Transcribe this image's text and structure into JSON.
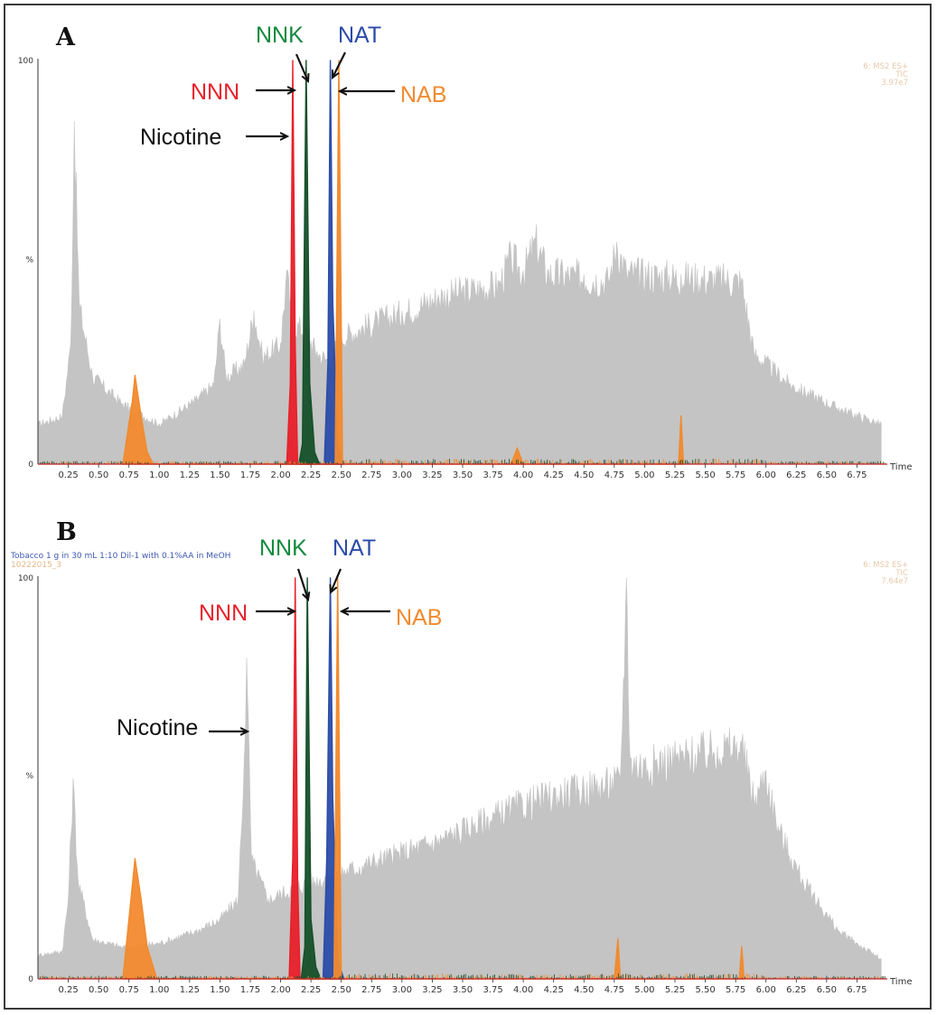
{
  "chart_data": [
    {
      "type": "line",
      "panel_label": "A",
      "xlabel": "Time",
      "ylabel_top": "100",
      "ylabel_mid": "%",
      "ylabel_zero": "0",
      "xlim": [
        0.0,
        7.0
      ],
      "ylim": [
        0,
        100
      ],
      "x_ticks": [
        "0.25",
        "0.50",
        "0.75",
        "1.00",
        "1.25",
        "1.50",
        "1.75",
        "2.00",
        "2.25",
        "2.50",
        "2.75",
        "3.00",
        "3.25",
        "3.50",
        "3.75",
        "4.00",
        "4.25",
        "4.50",
        "4.75",
        "5.00",
        "5.25",
        "5.50",
        "5.75",
        "6.00",
        "6.25",
        "6.50",
        "6.75"
      ],
      "header_right": [
        "6: MS2 ES+",
        "TIC",
        "3.97e7"
      ],
      "caption": [],
      "series": [
        {
          "name": "TIC",
          "color": "#c4c4c4",
          "points": [
            [
              0.0,
              10
            ],
            [
              0.2,
              12
            ],
            [
              0.27,
              30
            ],
            [
              0.3,
              85
            ],
            [
              0.34,
              40
            ],
            [
              0.45,
              22
            ],
            [
              0.7,
              15
            ],
            [
              1.0,
              10
            ],
            [
              1.3,
              16
            ],
            [
              1.45,
              20
            ],
            [
              1.5,
              36
            ],
            [
              1.55,
              22
            ],
            [
              1.7,
              25
            ],
            [
              1.78,
              38
            ],
            [
              1.85,
              27
            ],
            [
              2.0,
              30
            ],
            [
              2.05,
              48
            ],
            [
              2.1,
              35
            ],
            [
              2.2,
              34
            ],
            [
              2.3,
              28
            ],
            [
              2.4,
              26
            ],
            [
              2.5,
              32
            ],
            [
              2.8,
              36
            ],
            [
              3.0,
              38
            ],
            [
              3.3,
              42
            ],
            [
              3.6,
              44
            ],
            [
              3.8,
              45
            ],
            [
              3.9,
              52
            ],
            [
              4.0,
              48
            ],
            [
              4.1,
              56
            ],
            [
              4.2,
              48
            ],
            [
              4.5,
              47
            ],
            [
              4.7,
              46
            ],
            [
              4.77,
              55
            ],
            [
              4.85,
              48
            ],
            [
              5.3,
              47
            ],
            [
              5.8,
              46
            ],
            [
              5.9,
              28
            ],
            [
              6.2,
              20
            ],
            [
              6.6,
              14
            ],
            [
              6.95,
              10
            ]
          ]
        },
        {
          "name": "NNN",
          "color": "#e8202a",
          "points": [
            [
              2.0,
              0
            ],
            [
              2.05,
              0
            ],
            [
              2.08,
              20
            ],
            [
              2.1,
              100
            ],
            [
              2.12,
              30
            ],
            [
              2.14,
              0
            ],
            [
              2.5,
              0
            ]
          ]
        },
        {
          "name": "NNK",
          "color": "#15502a",
          "points": [
            [
              2.15,
              0
            ],
            [
              2.18,
              5
            ],
            [
              2.21,
              100
            ],
            [
              2.24,
              20
            ],
            [
              2.28,
              3
            ],
            [
              2.32,
              0
            ]
          ]
        },
        {
          "name": "NAT",
          "color": "#2b4ca8",
          "points": [
            [
              2.36,
              0
            ],
            [
              2.39,
              25
            ],
            [
              2.41,
              100
            ],
            [
              2.43,
              40
            ],
            [
              2.47,
              5
            ],
            [
              2.52,
              0
            ]
          ]
        },
        {
          "name": "NAB",
          "color": "#f28a2e",
          "points": [
            [
              0.7,
              0
            ],
            [
              0.78,
              16
            ],
            [
              0.8,
              22
            ],
            [
              0.85,
              12
            ],
            [
              0.9,
              3
            ],
            [
              0.95,
              0
            ],
            [
              2.45,
              0
            ],
            [
              2.48,
              100
            ],
            [
              2.51,
              0
            ],
            [
              3.9,
              0
            ],
            [
              3.95,
              4
            ],
            [
              4.0,
              0
            ],
            [
              5.28,
              0
            ],
            [
              5.3,
              12
            ],
            [
              5.32,
              0
            ]
          ]
        }
      ],
      "annotations": [
        {
          "text": "NNK",
          "color": "#128a3c"
        },
        {
          "text": "NAT",
          "color": "#2b4ca8"
        },
        {
          "text": "NNN",
          "color": "#e8202a"
        },
        {
          "text": "NAB",
          "color": "#f28a2e"
        },
        {
          "text": "Nicotine",
          "color": "#111111"
        }
      ]
    },
    {
      "type": "line",
      "panel_label": "B",
      "xlabel": "Time",
      "ylabel_top": "100",
      "ylabel_mid": "%",
      "ylabel_zero": "0",
      "xlim": [
        0.0,
        7.0
      ],
      "ylim": [
        0,
        100
      ],
      "x_ticks": [
        "0.25",
        "0.50",
        "0.75",
        "1.00",
        "1.25",
        "1.50",
        "1.75",
        "2.00",
        "2.25",
        "2.50",
        "2.75",
        "3.00",
        "3.25",
        "3.50",
        "3.75",
        "4.00",
        "4.25",
        "4.50",
        "4.75",
        "5.00",
        "5.25",
        "5.50",
        "5.75",
        "6.00",
        "6.25",
        "6.50",
        "6.75"
      ],
      "header_right": [
        "6: MS2 ES+",
        "TIC",
        "7.64e7"
      ],
      "caption": [
        "Tobacco 1 g in 30 mL 1:10 Dil-1 with 0.1%AA in MeOH",
        "10222015_3"
      ],
      "series": [
        {
          "name": "TIC",
          "color": "#c4c4c4",
          "points": [
            [
              0.0,
              6
            ],
            [
              0.2,
              7
            ],
            [
              0.25,
              20
            ],
            [
              0.29,
              50
            ],
            [
              0.33,
              25
            ],
            [
              0.45,
              10
            ],
            [
              0.7,
              8
            ],
            [
              1.0,
              9
            ],
            [
              1.3,
              12
            ],
            [
              1.5,
              15
            ],
            [
              1.65,
              20
            ],
            [
              1.7,
              55
            ],
            [
              1.72,
              80
            ],
            [
              1.76,
              30
            ],
            [
              1.9,
              20
            ],
            [
              2.1,
              23
            ],
            [
              2.4,
              26
            ],
            [
              2.7,
              29
            ],
            [
              3.0,
              32
            ],
            [
              3.3,
              35
            ],
            [
              3.6,
              39
            ],
            [
              3.9,
              43
            ],
            [
              4.2,
              46
            ],
            [
              4.5,
              48
            ],
            [
              4.8,
              50
            ],
            [
              4.85,
              100
            ],
            [
              4.88,
              55
            ],
            [
              5.0,
              54
            ],
            [
              5.3,
              56
            ],
            [
              5.6,
              58
            ],
            [
              5.8,
              59
            ],
            [
              5.9,
              45
            ],
            [
              6.0,
              52
            ],
            [
              6.1,
              38
            ],
            [
              6.3,
              25
            ],
            [
              6.6,
              12
            ],
            [
              6.95,
              5
            ]
          ]
        },
        {
          "name": "NNN",
          "color": "#e8202a",
          "points": [
            [
              2.0,
              0
            ],
            [
              2.07,
              0
            ],
            [
              2.1,
              30
            ],
            [
              2.12,
              100
            ],
            [
              2.14,
              25
            ],
            [
              2.16,
              0
            ],
            [
              2.5,
              0
            ]
          ]
        },
        {
          "name": "NNK",
          "color": "#15502a",
          "points": [
            [
              2.17,
              0
            ],
            [
              2.2,
              8
            ],
            [
              2.22,
              100
            ],
            [
              2.25,
              15
            ],
            [
              2.29,
              3
            ],
            [
              2.33,
              0
            ]
          ]
        },
        {
          "name": "NAT",
          "color": "#2b4ca8",
          "points": [
            [
              2.35,
              0
            ],
            [
              2.38,
              30
            ],
            [
              2.41,
              100
            ],
            [
              2.43,
              45
            ],
            [
              2.47,
              5
            ],
            [
              2.52,
              0
            ]
          ]
        },
        {
          "name": "NAB",
          "color": "#f28a2e",
          "points": [
            [
              0.7,
              0
            ],
            [
              0.76,
              18
            ],
            [
              0.8,
              30
            ],
            [
              0.85,
              20
            ],
            [
              0.9,
              8
            ],
            [
              0.98,
              0
            ],
            [
              2.44,
              0
            ],
            [
              2.47,
              100
            ],
            [
              2.5,
              0
            ],
            [
              4.75,
              0
            ],
            [
              4.78,
              10
            ],
            [
              4.8,
              0
            ],
            [
              5.78,
              0
            ],
            [
              5.8,
              8
            ],
            [
              5.82,
              0
            ]
          ]
        }
      ],
      "annotations": [
        {
          "text": "NNK",
          "color": "#128a3c"
        },
        {
          "text": "NAT",
          "color": "#2b4ca8"
        },
        {
          "text": "NNN",
          "color": "#e8202a"
        },
        {
          "text": "NAB",
          "color": "#f28a2e"
        },
        {
          "text": "Nicotine",
          "color": "#111111"
        }
      ]
    }
  ]
}
